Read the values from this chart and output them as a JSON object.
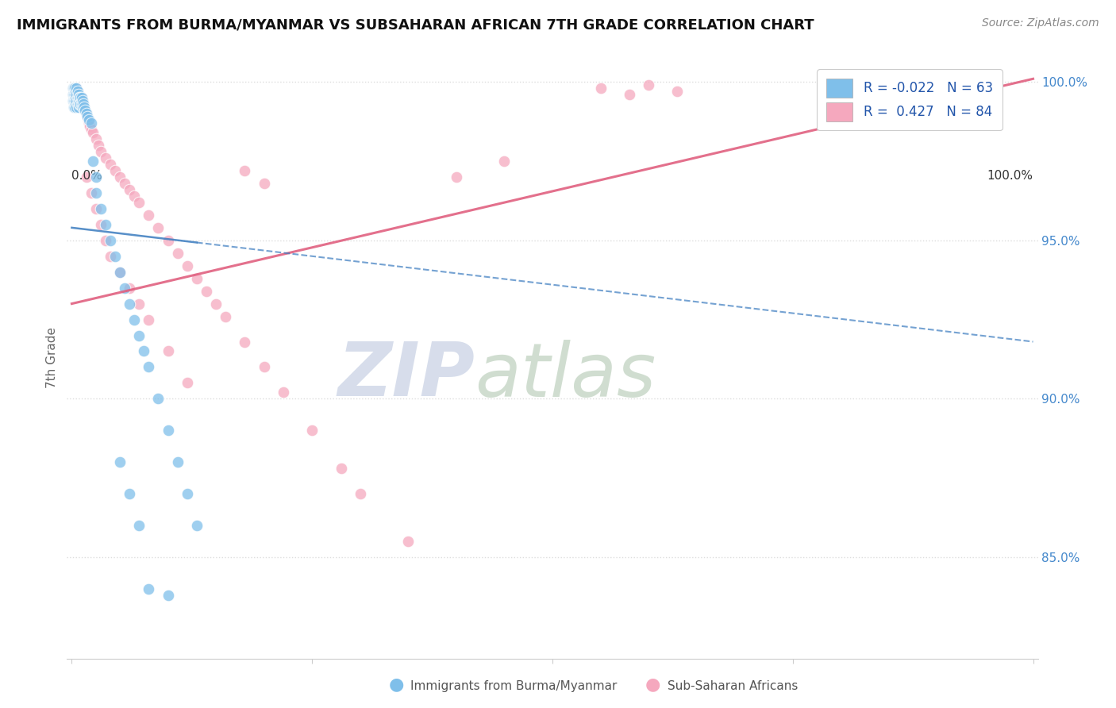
{
  "title": "IMMIGRANTS FROM BURMA/MYANMAR VS SUBSAHARAN AFRICAN 7TH GRADE CORRELATION CHART",
  "source_text": "Source: ZipAtlas.com",
  "ylabel": "7th Grade",
  "watermark_zip": "ZIP",
  "watermark_atlas": "atlas",
  "blue_color": "#7fbfea",
  "pink_color": "#f5a8be",
  "trend_blue_color": "#3a7bbf",
  "trend_pink_color": "#e06080",
  "right_axis_color": "#4488cc",
  "ylim_min": 0.818,
  "ylim_max": 1.008,
  "xlim_min": -0.005,
  "xlim_max": 1.005,
  "right_yticks": [
    0.85,
    0.9,
    0.95,
    1.0
  ],
  "right_yticklabels": [
    "85.0%",
    "90.0%",
    "95.0%",
    "100.0%"
  ],
  "blue_x": [
    0.001,
    0.001,
    0.001,
    0.002,
    0.002,
    0.002,
    0.002,
    0.003,
    0.003,
    0.003,
    0.003,
    0.004,
    0.004,
    0.004,
    0.005,
    0.005,
    0.005,
    0.005,
    0.006,
    0.006,
    0.006,
    0.007,
    0.007,
    0.007,
    0.008,
    0.008,
    0.009,
    0.009,
    0.01,
    0.01,
    0.011,
    0.011,
    0.012,
    0.013,
    0.014,
    0.015,
    0.016,
    0.018,
    0.02,
    0.022,
    0.025,
    0.025,
    0.03,
    0.035,
    0.04,
    0.045,
    0.05,
    0.055,
    0.06,
    0.065,
    0.07,
    0.075,
    0.08,
    0.09,
    0.1,
    0.11,
    0.12,
    0.13,
    0.05,
    0.06,
    0.07,
    0.08,
    0.1
  ],
  "blue_y": [
    0.998,
    0.996,
    0.994,
    0.998,
    0.996,
    0.994,
    0.992,
    0.998,
    0.996,
    0.994,
    0.992,
    0.997,
    0.995,
    0.993,
    0.998,
    0.996,
    0.994,
    0.992,
    0.997,
    0.995,
    0.993,
    0.996,
    0.994,
    0.992,
    0.995,
    0.993,
    0.995,
    0.993,
    0.995,
    0.993,
    0.994,
    0.992,
    0.993,
    0.992,
    0.991,
    0.99,
    0.989,
    0.988,
    0.987,
    0.975,
    0.97,
    0.965,
    0.96,
    0.955,
    0.95,
    0.945,
    0.94,
    0.935,
    0.93,
    0.925,
    0.92,
    0.915,
    0.91,
    0.9,
    0.89,
    0.88,
    0.87,
    0.86,
    0.88,
    0.87,
    0.86,
    0.84,
    0.838
  ],
  "pink_x": [
    0.001,
    0.001,
    0.002,
    0.002,
    0.002,
    0.003,
    0.003,
    0.003,
    0.004,
    0.004,
    0.004,
    0.005,
    0.005,
    0.005,
    0.005,
    0.006,
    0.006,
    0.007,
    0.007,
    0.007,
    0.008,
    0.008,
    0.009,
    0.009,
    0.01,
    0.01,
    0.011,
    0.012,
    0.013,
    0.014,
    0.015,
    0.016,
    0.017,
    0.018,
    0.019,
    0.02,
    0.022,
    0.025,
    0.028,
    0.03,
    0.035,
    0.04,
    0.045,
    0.05,
    0.055,
    0.06,
    0.065,
    0.07,
    0.08,
    0.09,
    0.1,
    0.11,
    0.12,
    0.13,
    0.14,
    0.15,
    0.16,
    0.18,
    0.2,
    0.22,
    0.25,
    0.28,
    0.3,
    0.35,
    0.6,
    0.63,
    0.015,
    0.02,
    0.025,
    0.03,
    0.035,
    0.04,
    0.05,
    0.06,
    0.07,
    0.08,
    0.1,
    0.12,
    0.55,
    0.58,
    0.4,
    0.45,
    0.18,
    0.2
  ],
  "pink_y": [
    0.998,
    0.996,
    0.998,
    0.996,
    0.994,
    0.998,
    0.996,
    0.994,
    0.997,
    0.995,
    0.993,
    0.998,
    0.996,
    0.994,
    0.992,
    0.997,
    0.995,
    0.996,
    0.994,
    0.992,
    0.995,
    0.993,
    0.995,
    0.993,
    0.995,
    0.993,
    0.994,
    0.993,
    0.992,
    0.991,
    0.99,
    0.989,
    0.988,
    0.987,
    0.986,
    0.985,
    0.984,
    0.982,
    0.98,
    0.978,
    0.976,
    0.974,
    0.972,
    0.97,
    0.968,
    0.966,
    0.964,
    0.962,
    0.958,
    0.954,
    0.95,
    0.946,
    0.942,
    0.938,
    0.934,
    0.93,
    0.926,
    0.918,
    0.91,
    0.902,
    0.89,
    0.878,
    0.87,
    0.855,
    0.999,
    0.997,
    0.97,
    0.965,
    0.96,
    0.955,
    0.95,
    0.945,
    0.94,
    0.935,
    0.93,
    0.925,
    0.915,
    0.905,
    0.998,
    0.996,
    0.97,
    0.975,
    0.972,
    0.968
  ],
  "pink_trend_y0": 0.93,
  "pink_trend_y1": 1.001,
  "blue_trend_y0": 0.954,
  "blue_trend_y1": 0.918
}
